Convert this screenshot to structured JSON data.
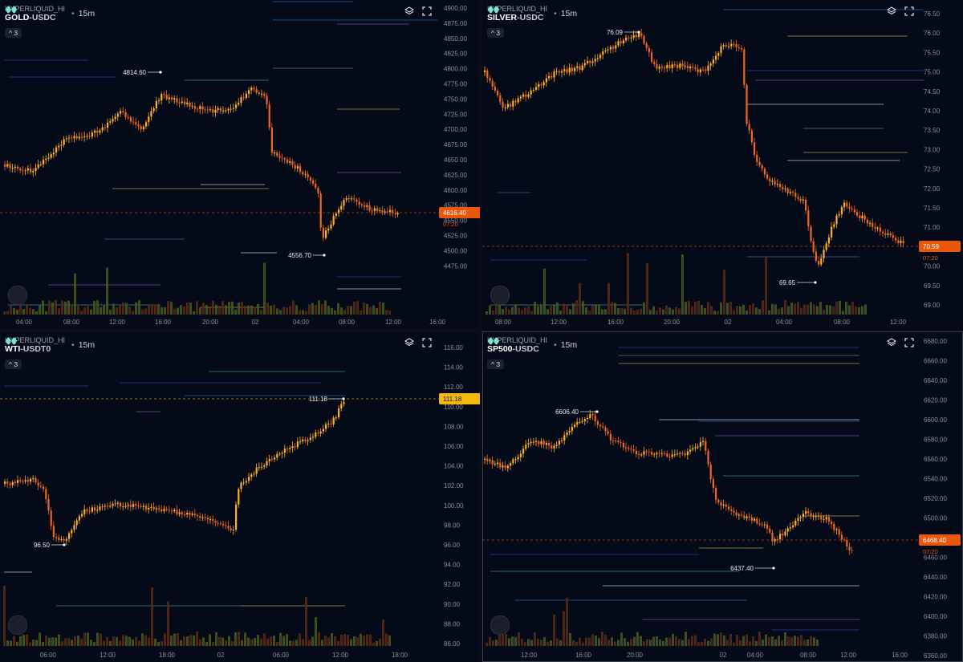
{
  "panels": [
    {
      "id": "gold",
      "exchange": "HYPERLIQUID_HI",
      "symbol_base": "GOLD",
      "symbol_quote": "-USDC",
      "timeframe": "15m",
      "indicator_count": "3",
      "price_axis": [
        "4900.00",
        "4875.00",
        "4850.00",
        "4825.00",
        "4800.00",
        "4775.00",
        "4750.00",
        "4725.00",
        "4700.00",
        "4675.00",
        "4650.00",
        "4625.00",
        "4600.00",
        "4575.00",
        "4550.00",
        "4525.00",
        "4500.00",
        "4475.00"
      ],
      "time_axis": [
        "04:00",
        "08:00",
        "12:00",
        "16:00",
        "20:00",
        "02",
        "04:00",
        "08:00",
        "12:00",
        "16:00"
      ],
      "last_price": "4616.40",
      "countdown": "07:20",
      "high_label": "4814.60",
      "low_label": "4556.70"
    },
    {
      "id": "silver",
      "exchange": "HYPERLIQUID_HI",
      "symbol_base": "SILVER",
      "symbol_quote": "-USDC",
      "timeframe": "15m",
      "indicator_count": "3",
      "price_axis": [
        "76.50",
        "76.00",
        "75.50",
        "75.00",
        "74.50",
        "74.00",
        "73.50",
        "73.00",
        "72.50",
        "72.00",
        "71.50",
        "71.00",
        "70.50",
        "70.00",
        "69.50",
        "69.00"
      ],
      "time_axis": [
        "08:00",
        "12:00",
        "16:00",
        "20:00",
        "02",
        "04:00",
        "08:00",
        "12:00"
      ],
      "last_price": "70.59",
      "countdown": "07:20",
      "high_label": "76.09",
      "low_label": "69.65"
    },
    {
      "id": "wti",
      "exchange": "HYPERLIQUID_HI",
      "symbol_base": "WTI",
      "symbol_quote": "-USDT0",
      "timeframe": "15m",
      "indicator_count": "3",
      "price_axis": [
        "116.00",
        "114.00",
        "112.00",
        "110.00",
        "108.00",
        "106.00",
        "104.00",
        "102.00",
        "100.00",
        "98.00",
        "96.00",
        "94.00",
        "92.00",
        "90.00",
        "88.00",
        "86.00"
      ],
      "time_axis": [
        "06:00",
        "12:00",
        "18:00",
        "02",
        "06:00",
        "12:00",
        "18:00"
      ],
      "last_price": "111.18",
      "high_label": "111.18",
      "low_label": "96.50"
    },
    {
      "id": "sp500",
      "exchange": "HYPERLIQUID_HI",
      "symbol_base": "SP500",
      "symbol_quote": "-USDC",
      "timeframe": "15m",
      "indicator_count": "3",
      "price_axis": [
        "6680.00",
        "6660.00",
        "6640.00",
        "6620.00",
        "6600.00",
        "6580.00",
        "6560.00",
        "6540.00",
        "6520.00",
        "6500.00",
        "6480.00",
        "6460.00",
        "6440.00",
        "6420.00",
        "6400.00",
        "6380.00",
        "6360.00"
      ],
      "time_axis": [
        "12:00",
        "16:00",
        "20:00",
        "02",
        "04:00",
        "08:00",
        "12:00",
        "16:00"
      ],
      "last_price": "6468.40",
      "countdown": "07:20",
      "high_label": "6606.40",
      "low_label": "6437.40"
    }
  ],
  "colors": {
    "background": "#050a18",
    "candle_up": "#ffb020",
    "candle_down": "#f0661e",
    "last_price_tag": "#e8570c",
    "wti_price_tag": "#f0b90b",
    "axis_text": "#8a8f9a"
  }
}
